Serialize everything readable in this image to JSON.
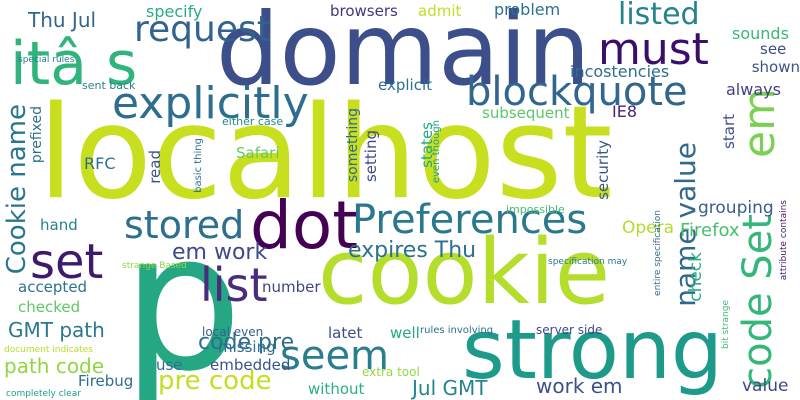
{
  "words": [
    {
      "text": "localhost",
      "color": "#c8df1f"
    },
    {
      "text": "p",
      "color": "#26a784"
    },
    {
      "text": "domain",
      "color": "#3c4f8a"
    },
    {
      "text": "cookie",
      "color": "#b4dd2c"
    },
    {
      "text": "strong",
      "color": "#1e9a8a"
    },
    {
      "text": "itâ s",
      "color": "#2fb47c"
    },
    {
      "text": "dot",
      "color": "#440154"
    },
    {
      "text": "must",
      "color": "#3a0f6b"
    },
    {
      "text": "explicitly",
      "color": "#2d6e8e"
    },
    {
      "text": "blockquote",
      "color": "#31668e"
    },
    {
      "text": "Preferences",
      "color": "#2a788e"
    },
    {
      "text": "set",
      "color": "#3e1a6e"
    },
    {
      "text": "list",
      "color": "#472d7b"
    },
    {
      "text": "seem",
      "color": "#287d8e"
    },
    {
      "text": "stored",
      "color": "#2c6f8e"
    },
    {
      "text": "request",
      "color": "#33638d"
    },
    {
      "text": "listed",
      "color": "#25838e"
    },
    {
      "text": "em",
      "color": "#7ad151"
    },
    {
      "text": "code Set",
      "color": "#35b779"
    },
    {
      "text": "Cookie name",
      "color": "#2a768e"
    },
    {
      "text": "name value",
      "color": "#31698e"
    },
    {
      "text": "pre code",
      "color": "#c2df23"
    },
    {
      "text": "code pre",
      "color": "#2e6d8e"
    },
    {
      "text": "em work",
      "color": "#3e4989"
    },
    {
      "text": "expires Thu",
      "color": "#2c718e"
    },
    {
      "text": "Thu Jul",
      "color": "#31678e"
    },
    {
      "text": "GMT path",
      "color": "#2a778e"
    },
    {
      "text": "path code",
      "color": "#90d743"
    },
    {
      "text": "Jul GMT",
      "color": "#25848e"
    },
    {
      "text": "work em",
      "color": "#3b518b"
    },
    {
      "text": "grouping",
      "color": "#355f8d"
    },
    {
      "text": "Firefox",
      "color": "#46c06f"
    },
    {
      "text": "Opera",
      "color": "#b2dd2d"
    },
    {
      "text": "check",
      "color": "#2ab07f"
    },
    {
      "text": "value",
      "color": "#3f4788"
    },
    {
      "text": "value",
      "color": "#424086"
    },
    {
      "text": "specify",
      "color": "#26ad81"
    },
    {
      "text": "browsers",
      "color": "#463480"
    },
    {
      "text": "admit",
      "color": "#bddf26"
    },
    {
      "text": "problem",
      "color": "#2c718e"
    },
    {
      "text": "incostencies",
      "color": "#2e6e8e"
    },
    {
      "text": "sounds",
      "color": "#37b878"
    },
    {
      "text": "see",
      "color": "#3d4e8a"
    },
    {
      "text": "shown",
      "color": "#3a548c"
    },
    {
      "text": "always",
      "color": "#433e85"
    },
    {
      "text": "explicit",
      "color": "#2d708e"
    },
    {
      "text": "subsequent",
      "color": "#5cc863"
    },
    {
      "text": "IE8",
      "color": "#482475"
    },
    {
      "text": "either case",
      "color": "#23898e"
    },
    {
      "text": "sent back",
      "color": "#26818e"
    },
    {
      "text": "RFC",
      "color": "#2e6f8e"
    },
    {
      "text": "read",
      "color": "#3b528b"
    },
    {
      "text": "basic thing",
      "color": "#2d708e"
    },
    {
      "text": "Safari",
      "color": "#65cb5e"
    },
    {
      "text": "something",
      "color": "#31678e"
    },
    {
      "text": "setting",
      "color": "#3e4a89"
    },
    {
      "text": "states",
      "color": "#20a486"
    },
    {
      "text": "even though",
      "color": "#1fa287"
    },
    {
      "text": "security",
      "color": "#38588c"
    },
    {
      "text": "start",
      "color": "#3e4c8a"
    },
    {
      "text": "prefixed",
      "color": "#2c728e"
    },
    {
      "text": "impossible",
      "color": "#42be71"
    },
    {
      "text": "hand",
      "color": "#26828e"
    },
    {
      "text": "accepted",
      "color": "#2c728e"
    },
    {
      "text": "checked",
      "color": "#5ec962"
    },
    {
      "text": "number",
      "color": "#404588"
    },
    {
      "text": "local even",
      "color": "#34618d"
    },
    {
      "text": "latet",
      "color": "#3e4c8a"
    },
    {
      "text": "well",
      "color": "#22a884"
    },
    {
      "text": "missing",
      "color": "#2d6f8e"
    },
    {
      "text": "embedded",
      "color": "#3b528b"
    },
    {
      "text": "use",
      "color": "#2e6f8e"
    },
    {
      "text": "without",
      "color": "#2ab07f"
    },
    {
      "text": "extra tool",
      "color": "#95d840"
    },
    {
      "text": "rules involving",
      "color": "#2d708e"
    },
    {
      "text": "server side",
      "color": "#3f4788"
    },
    {
      "text": "Firebug",
      "color": "#2e6e8e"
    },
    {
      "text": "completely clear",
      "color": "#1f9e89"
    },
    {
      "text": "document indicates",
      "color": "#b5de2b"
    },
    {
      "text": "strange Based",
      "color": "#8fd744"
    },
    {
      "text": "special rules",
      "color": "#287c8e"
    },
    {
      "text": "specification may",
      "color": "#2a788e"
    },
    {
      "text": "entire specification",
      "color": "#2d708e"
    },
    {
      "text": "attribute contains",
      "color": "#481b6d"
    },
    {
      "text": "bit strange",
      "color": "#3fbc73"
    }
  ]
}
